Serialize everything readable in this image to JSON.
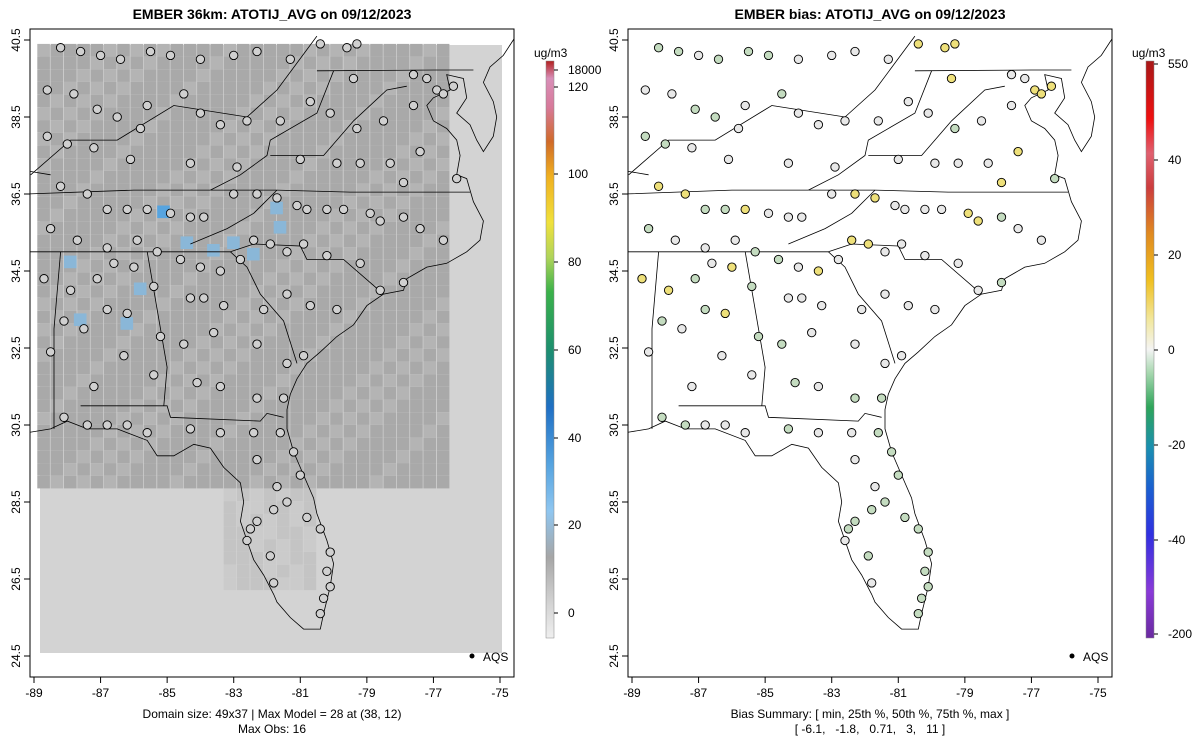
{
  "left_panel": {
    "title": "EMBER 36km: ATOTIJ_AVG on 09/12/2023",
    "footer_line1": "Domain size: 49x37 | Max Model = 28 at (38, 12)",
    "footer_line2": "Max Obs: 16",
    "legend_label": "AQS",
    "colorbar_unit": "ug/m3",
    "colorbar_ticks": [
      "18000",
      "120",
      "100",
      "80",
      "60",
      "40",
      "20",
      "0"
    ]
  },
  "right_panel": {
    "title": "EMBER bias: ATOTIJ_AVG on 09/12/2023",
    "footer_line1": "Bias Summary: [ min, 25th %, 50th %, 75th %, max ]",
    "footer_line2": "[ -6.1,   -1.8,   0.71,   3,   11 ]",
    "legend_label": "AQS",
    "colorbar_unit": "ug/m3",
    "colorbar_ticks": [
      "550",
      "40",
      "20",
      "0",
      "-20",
      "-40",
      "-200"
    ]
  },
  "axes": {
    "x_ticks": [
      "-89",
      "-87",
      "-85",
      "-83",
      "-81",
      "-79",
      "-77",
      "-75"
    ],
    "y_ticks": [
      "24.5",
      "26.5",
      "28.5",
      "30.5",
      "32.5",
      "34.5",
      "36.5",
      "38.5",
      "40.5"
    ],
    "lon_range": [
      -89.2,
      -74.6
    ],
    "lat_range": [
      24.2,
      40.8
    ]
  },
  "colors": {
    "domain_gray": "#d3d3d3",
    "model_gray": "#a9a9a9",
    "model_blue": "#56a4e0",
    "bias_green": "#c4dcc0",
    "bias_yellow": "#eee07a",
    "obs_gray": "#d0d0d0"
  }
}
